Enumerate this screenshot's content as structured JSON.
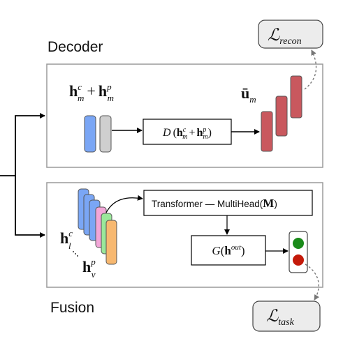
{
  "decoder": {
    "title": "Decoder",
    "input_label": {
      "base": "h",
      "sub": "m",
      "sup_c": "c",
      "plus": "+",
      "sup_p": "p"
    },
    "decoder_fn": {
      "name": "D"
    },
    "output_label": {
      "base": "ū",
      "sub": "m"
    }
  },
  "fusion": {
    "title": "Fusion",
    "transformer_label": "Transformer — MultiHead",
    "transformer_arg": "M",
    "gate_fn": {
      "name": "G",
      "arg": "h",
      "sup": "out"
    },
    "hlc": {
      "base": "h",
      "sup": "c",
      "sub": "l"
    },
    "hvp": {
      "base": "h",
      "sup": "p",
      "sub": "v"
    }
  },
  "losses": {
    "recon": {
      "symbol": "ℒ",
      "sub": "recon"
    },
    "task": {
      "symbol": "ℒ",
      "sub": "task"
    }
  },
  "colors": {
    "blue": "#7aa6f5",
    "gray": "#cfcfcf",
    "red": "#c9585e",
    "pink": "#f2a6d8",
    "green": "#9ae89a",
    "orange": "#f7b870",
    "light_green": "#1a8a1a",
    "light_red": "#c41a0a"
  }
}
